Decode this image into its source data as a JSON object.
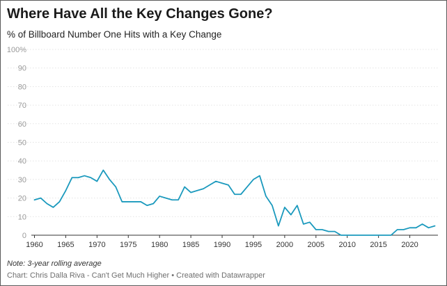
{
  "chart_data": {
    "type": "line",
    "title": "Where Have All the Key Changes Gone?",
    "subtitle": "% of Billboard Number One Hits with a Key Change",
    "note": "Note: 3-year rolling average",
    "credit": "Chart: Chris Dalla Riva - Can't Get Much Higher • Created with Datawrapper",
    "xlabel": "",
    "ylabel": "",
    "xlim": [
      1959.5,
      2024.5
    ],
    "ylim": [
      0,
      100
    ],
    "x_ticks": [
      "1960",
      "1965",
      "1970",
      "1975",
      "1980",
      "1985",
      "1990",
      "1995",
      "2000",
      "2005",
      "2010",
      "2015",
      "2020"
    ],
    "y_ticks": [
      "0",
      "10",
      "20",
      "30",
      "40",
      "50",
      "60",
      "70",
      "80",
      "90",
      "100%"
    ],
    "grid": true,
    "legend": "none",
    "line_color": "#1a99bd",
    "series": [
      {
        "x": [
          1960,
          1961,
          1962,
          1963,
          1964,
          1965,
          1966,
          1967,
          1968,
          1969,
          1970,
          1971,
          1972,
          1973,
          1974,
          1975,
          1976,
          1977,
          1978,
          1979,
          1980,
          1981,
          1982,
          1983,
          1984,
          1985,
          1986,
          1987,
          1988,
          1989,
          1990,
          1991,
          1992,
          1993,
          1994,
          1995,
          1996,
          1997,
          1998,
          1999,
          2000,
          2001,
          2002,
          2003,
          2004,
          2005,
          2006,
          2007,
          2008,
          2009,
          2010,
          2011,
          2012,
          2013,
          2014,
          2015,
          2016,
          2017,
          2018,
          2019,
          2020,
          2021,
          2022,
          2023,
          2024
        ],
        "values": [
          19,
          20,
          17,
          15,
          18,
          24,
          31,
          31,
          32,
          31,
          29,
          35,
          30,
          26,
          18,
          18,
          18,
          18,
          16,
          17,
          21,
          20,
          19,
          19,
          26,
          23,
          24,
          25,
          27,
          29,
          28,
          27,
          22,
          22,
          26,
          30,
          32,
          21,
          16,
          5,
          15,
          11,
          16,
          6,
          7,
          3,
          3,
          2,
          2,
          0,
          0,
          0,
          0,
          0,
          0,
          0,
          0,
          0,
          3,
          3,
          4,
          4,
          6,
          4,
          5
        ]
      }
    ]
  }
}
